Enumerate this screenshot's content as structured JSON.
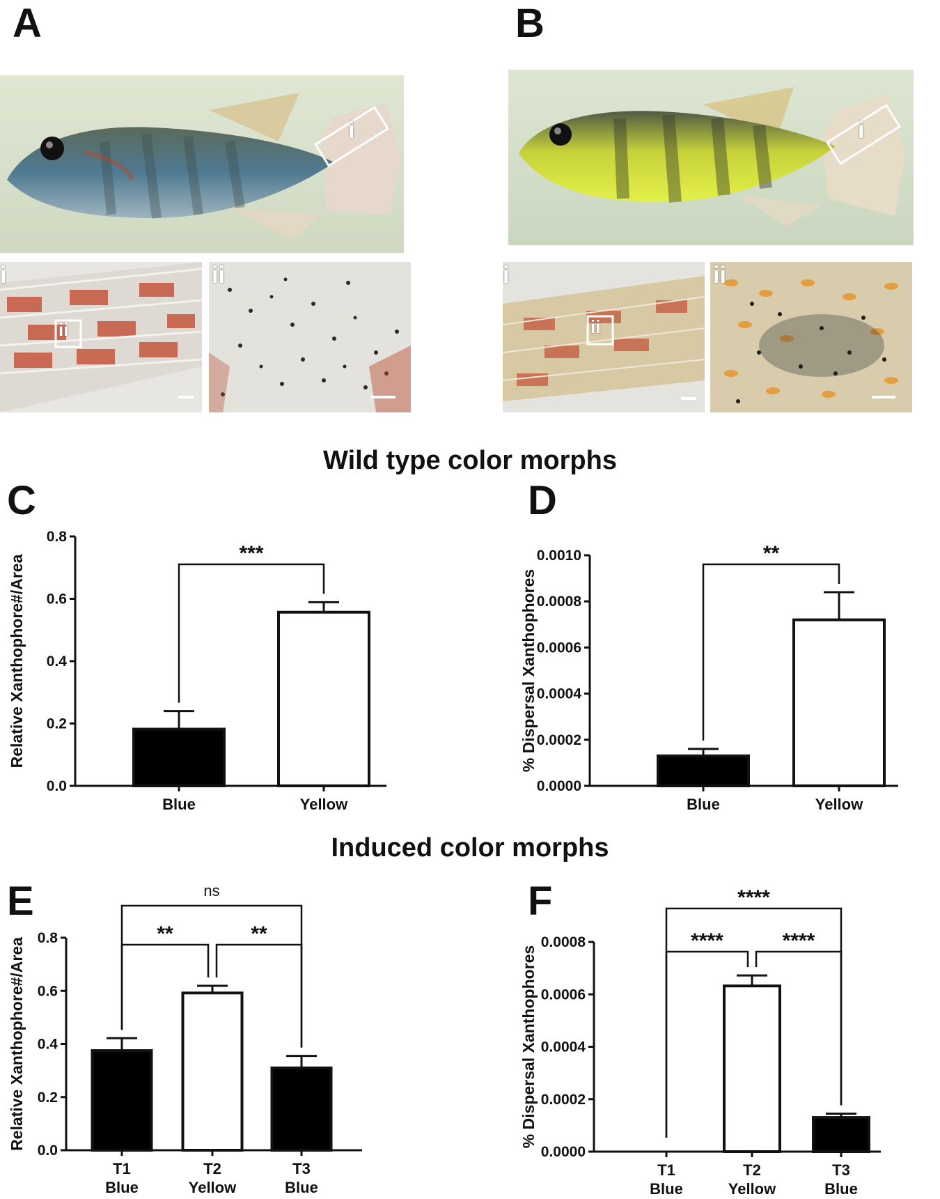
{
  "panels": {
    "A": "A",
    "B": "B",
    "C": "C",
    "D": "D",
    "E": "E",
    "F": "F"
  },
  "photo_labels": {
    "i": "i",
    "ii": "ii"
  },
  "sections": {
    "wild": "Wild type color morphs",
    "induced": "Induced  color morphs"
  },
  "colors": {
    "blue_bar": "#000000",
    "yellow_bar": "#ffffff",
    "axis": "#111111"
  },
  "chart_data": [
    {
      "id": "C",
      "type": "bar",
      "categories": [
        [
          "Blue"
        ],
        [
          "Yellow"
        ]
      ],
      "values": [
        0.182,
        0.557
      ],
      "errors": [
        0.058,
        0.032
      ],
      "fills": [
        "#000000",
        "#ffffff"
      ],
      "ylabel": "Relative Xanthophore#/Area",
      "ylim": [
        0,
        0.8
      ],
      "yticks": [
        "0.0",
        "0.2",
        "0.4",
        "0.6",
        "0.8"
      ],
      "comparisons": [
        {
          "from": 0,
          "to": 1,
          "label": "***"
        }
      ]
    },
    {
      "id": "D",
      "type": "bar",
      "categories": [
        [
          "Blue"
        ],
        [
          "Yellow"
        ]
      ],
      "values": [
        0.00013,
        0.00072
      ],
      "errors": [
        3e-05,
        0.00012
      ],
      "fills": [
        "#000000",
        "#ffffff"
      ],
      "ylabel": "% Dispersal Xanthophores",
      "ylim": [
        0,
        0.001
      ],
      "yticks": [
        "0.0000",
        "0.0002",
        "0.0004",
        "0.0006",
        "0.0008",
        "0.0010"
      ],
      "comparisons": [
        {
          "from": 0,
          "to": 1,
          "label": "**"
        }
      ]
    },
    {
      "id": "E",
      "type": "bar",
      "categories": [
        [
          "T1",
          "Blue"
        ],
        [
          "T2",
          "Yellow"
        ],
        [
          "T3",
          "Blue"
        ]
      ],
      "values": [
        0.375,
        0.592,
        0.31
      ],
      "errors": [
        0.047,
        0.027,
        0.045
      ],
      "fills": [
        "#000000",
        "#ffffff",
        "#000000"
      ],
      "ylabel": "Relative Xanthophore#/Area",
      "ylim": [
        0,
        0.8
      ],
      "yticks": [
        "0.0",
        "0.2",
        "0.4",
        "0.6",
        "0.8"
      ],
      "comparisons": [
        {
          "from": 0,
          "to": 1,
          "label": "**"
        },
        {
          "from": 1,
          "to": 2,
          "label": "**"
        },
        {
          "from": 0,
          "to": 2,
          "label": "ns"
        }
      ]
    },
    {
      "id": "F",
      "type": "bar",
      "categories": [
        [
          "T1",
          "Blue"
        ],
        [
          "T2",
          "Yellow"
        ],
        [
          "T3",
          "Blue"
        ]
      ],
      "values": [
        0,
        0.000632,
        0.00013
      ],
      "errors": [
        0,
        4e-05,
        1.5e-05
      ],
      "fills": [
        "#000000",
        "#ffffff",
        "#000000"
      ],
      "ylabel": "% Dispersal Xanthophores",
      "ylim": [
        0,
        0.0008
      ],
      "yticks": [
        "0.0000",
        "0.0002",
        "0.0004",
        "0.0006",
        "0.0008"
      ],
      "comparisons": [
        {
          "from": 0,
          "to": 1,
          "label": "****"
        },
        {
          "from": 1,
          "to": 2,
          "label": "****"
        },
        {
          "from": 0,
          "to": 2,
          "label": "****"
        }
      ]
    }
  ]
}
